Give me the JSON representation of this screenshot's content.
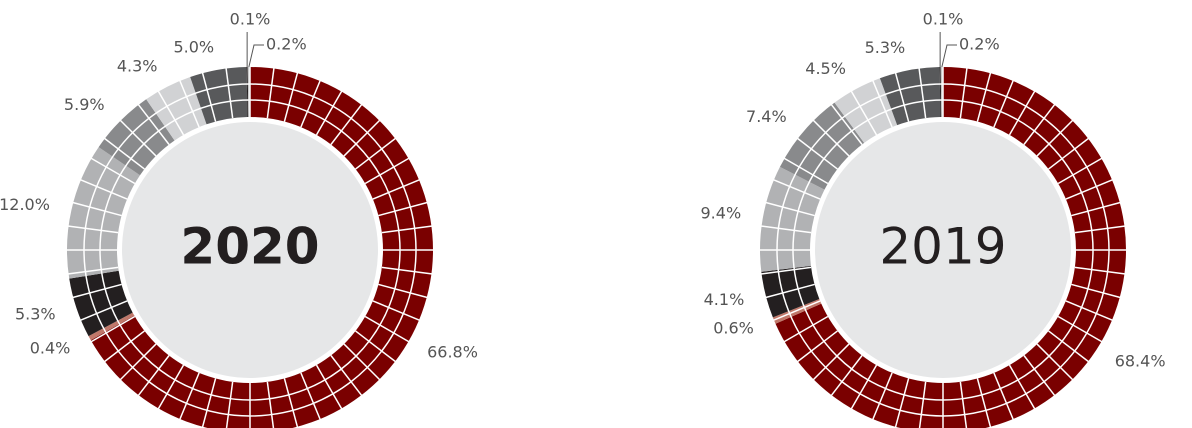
{
  "chart_data": [
    {
      "type": "donut",
      "title": "2020",
      "values": [
        66.8,
        0.4,
        5.3,
        12.0,
        5.9,
        4.3,
        5.0,
        0.1,
        0.2
      ],
      "value_labels": [
        "66.8%",
        "0.4%",
        "5.3%",
        "12.0%",
        "5.9%",
        "4.3%",
        "5.0%",
        "0.1%",
        "0.2%"
      ],
      "colors": [
        "#7a0000",
        "#c0786a",
        "#231f20",
        "#b1b2b4",
        "#898a8c",
        "#d1d2d4",
        "#58595b",
        "#231f20",
        "#c8c8c8"
      ]
    },
    {
      "type": "donut",
      "title": "2019",
      "values": [
        68.4,
        0.6,
        4.1,
        9.4,
        7.4,
        4.5,
        5.3,
        0.1,
        0.2
      ],
      "value_labels": [
        "68.4%",
        "0.6%",
        "4.1%",
        "9.4%",
        "7.4%",
        "4.5%",
        "5.3%",
        "0.1%",
        "0.2%"
      ],
      "colors": [
        "#7a0000",
        "#c0786a",
        "#231f20",
        "#b1b2b4",
        "#898a8c",
        "#d1d2d4",
        "#58595b",
        "#231f20",
        "#c8c8c8"
      ]
    }
  ]
}
